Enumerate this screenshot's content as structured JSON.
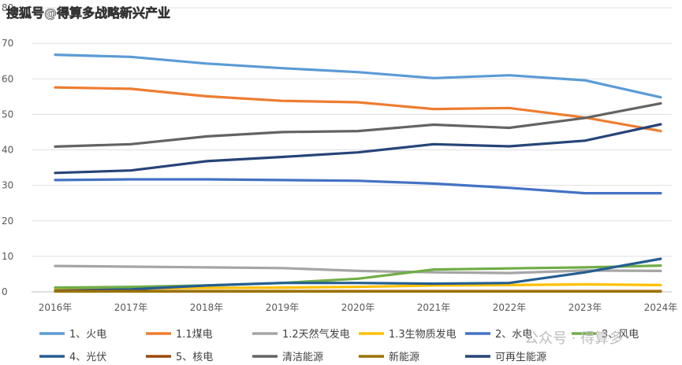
{
  "watermark_top": "搜狐号@得算多战略新兴产业",
  "watermark_bottom": "公众号 · 得算多",
  "chart_data": {
    "type": "line",
    "title": "",
    "xlabel": "",
    "ylabel": "",
    "categories": [
      "2016年",
      "2017年",
      "2018年",
      "2019年",
      "2020年",
      "2021年",
      "2022年",
      "2023年",
      "2024年"
    ],
    "ylim": [
      0,
      80
    ],
    "yticks": [
      0,
      10,
      20,
      30,
      40,
      50,
      60,
      70,
      80
    ],
    "ytick_labels": [
      "0",
      "10",
      "20",
      "30",
      "40",
      "50",
      "60",
      "70",
      "80"
    ],
    "grid": true,
    "legend_position": "bottom",
    "series": [
      {
        "name": "1、火电",
        "color": "#5B9BD5",
        "values": [
          66.8,
          66.2,
          64.3,
          63.0,
          61.9,
          60.2,
          61.0,
          59.6,
          54.8
        ]
      },
      {
        "name": "1.1煤电",
        "color": "#ED7D31",
        "values": [
          57.6,
          57.2,
          55.1,
          53.8,
          53.4,
          51.5,
          51.8,
          49.1,
          45.3
        ]
      },
      {
        "name": "1.2天然气发电",
        "color": "#A5A5A5",
        "values": [
          7.3,
          7.1,
          6.9,
          6.7,
          5.9,
          5.5,
          5.3,
          6.0,
          5.9
        ]
      },
      {
        "name": "1.3生物质发电",
        "color": "#FFC000",
        "values": [
          0.9,
          0.9,
          1.1,
          1.2,
          1.4,
          1.8,
          1.9,
          2.1,
          1.9
        ]
      },
      {
        "name": "2、水电",
        "color": "#4472C4",
        "values": [
          31.5,
          31.7,
          31.7,
          31.5,
          31.3,
          30.5,
          29.3,
          27.8,
          27.8
        ]
      },
      {
        "name": "3、风电",
        "color": "#70AD47",
        "values": [
          1.2,
          1.4,
          1.8,
          2.5,
          3.7,
          6.3,
          6.6,
          6.9,
          7.4
        ]
      },
      {
        "name": "4、光伏",
        "color": "#255E91",
        "values": [
          0.3,
          0.7,
          1.8,
          2.5,
          2.5,
          2.3,
          2.5,
          5.5,
          9.3
        ]
      },
      {
        "name": "5、核电",
        "color": "#9E480E",
        "values": [
          0.2,
          0.2,
          0.2,
          0.2,
          0.2,
          0.2,
          0.2,
          0.2,
          0.2
        ]
      },
      {
        "name": "清洁能源",
        "color": "#636363",
        "values": [
          40.9,
          41.6,
          43.8,
          45.0,
          45.3,
          47.1,
          46.2,
          49.0,
          53.1
        ]
      },
      {
        "name": "新能源",
        "color": "#997300",
        "values": [
          0.1,
          0.1,
          0.1,
          0.1,
          0.1,
          0.1,
          0.1,
          0.1,
          0.1
        ]
      },
      {
        "name": "可再生能源",
        "color": "#264478",
        "values": [
          33.5,
          34.2,
          36.8,
          38.0,
          39.3,
          41.6,
          41.0,
          42.6,
          47.2
        ]
      }
    ]
  }
}
